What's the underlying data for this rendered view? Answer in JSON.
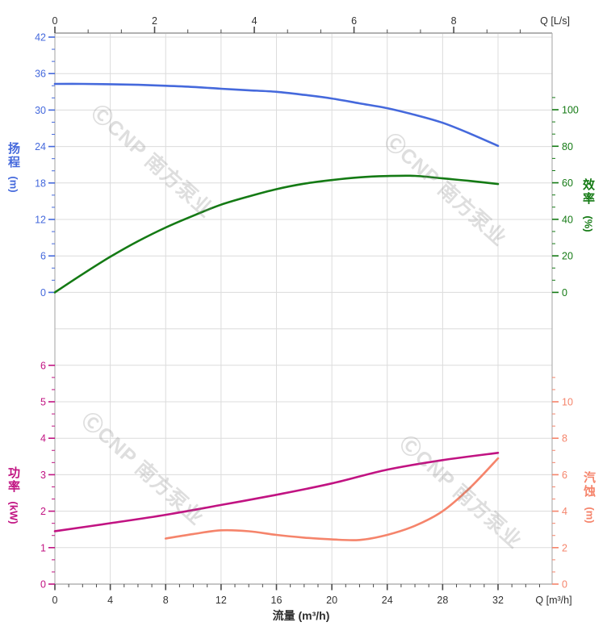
{
  "watermark": {
    "text": "ⒸCNP 南方泵业"
  },
  "colors": {
    "head": "#4569dc",
    "efficiency": "#147a14",
    "power": "#c11382",
    "npsh": "#f5846b",
    "grid": "#dcdcdc",
    "frame": "#b2b2b2",
    "dark": "#3d3d3d"
  },
  "chart_data": {
    "type": "line",
    "title": "",
    "x_axis_bottom": {
      "label": "流量 (m³/h)",
      "unit_label": "Q [m³/h]",
      "ticks": [
        "0",
        "4",
        "8",
        "12",
        "16",
        "20",
        "24",
        "28",
        "32"
      ],
      "tick_values": [
        0,
        4,
        8,
        12,
        16,
        20,
        24,
        28,
        32
      ],
      "range": [
        0,
        35.9
      ],
      "minor_step": 1,
      "grid": true
    },
    "x_axis_top": {
      "unit_label": "Q [L/s]",
      "ticks": [
        "0",
        "2",
        "4",
        "6",
        "8"
      ],
      "tick_values": [
        0,
        2,
        4,
        6,
        8
      ],
      "range": [
        0,
        9.97
      ]
    },
    "panels": [
      {
        "name": "head-efficiency",
        "left_axis": {
          "title": "扬程",
          "unit": "(m)",
          "ticks": [
            "42",
            "36",
            "30",
            "24",
            "18",
            "12",
            "6",
            "0"
          ],
          "tick_values": [
            42,
            36,
            30,
            24,
            18,
            12,
            6,
            0
          ],
          "range": [
            0,
            42
          ],
          "color_key": "head"
        },
        "right_axis": {
          "title": "效率",
          "unit": "(%)",
          "ticks": [
            "100",
            "80",
            "60",
            "40",
            "20",
            "0"
          ],
          "tick_values": [
            100,
            80,
            60,
            40,
            20,
            0
          ],
          "range": [
            0,
            100
          ],
          "color_key": "efficiency"
        },
        "series": [
          {
            "name": "扬程 (head)",
            "axis": "head",
            "color_key": "head",
            "points": [
              [
                0,
                34.3
              ],
              [
                2,
                34.3
              ],
              [
                4,
                34.25
              ],
              [
                6,
                34.15
              ],
              [
                8,
                34.0
              ],
              [
                10,
                33.8
              ],
              [
                12,
                33.5
              ],
              [
                14,
                33.25
              ],
              [
                16,
                33.0
              ],
              [
                18,
                32.5
              ],
              [
                20,
                31.9
              ],
              [
                22,
                31.1
              ],
              [
                24,
                30.3
              ],
              [
                26,
                29.2
              ],
              [
                28,
                27.9
              ],
              [
                30,
                26.1
              ],
              [
                32,
                24.1
              ]
            ]
          },
          {
            "name": "效率 (efficiency)",
            "axis": "efficiency",
            "color_key": "efficiency",
            "points": [
              [
                0,
                0
              ],
              [
                2,
                10
              ],
              [
                4,
                19.5
              ],
              [
                6,
                28
              ],
              [
                8,
                35.5
              ],
              [
                10,
                42
              ],
              [
                12,
                48
              ],
              [
                14,
                52.5
              ],
              [
                16,
                56.5
              ],
              [
                18,
                59.5
              ],
              [
                20,
                61.5
              ],
              [
                22,
                63
              ],
              [
                24,
                63.7
              ],
              [
                26,
                63.8
              ],
              [
                28,
                62.4
              ],
              [
                30,
                61
              ],
              [
                32,
                59.3
              ]
            ]
          }
        ]
      },
      {
        "name": "power-npsh",
        "left_axis": {
          "title": "功率",
          "unit": "(kW)",
          "ticks": [
            "6",
            "5",
            "4",
            "3",
            "2",
            "1",
            "0"
          ],
          "tick_values": [
            6,
            5,
            4,
            3,
            2,
            1,
            0
          ],
          "range": [
            0,
            6
          ],
          "color_key": "power"
        },
        "right_axis": {
          "title": "汽蚀",
          "unit": "(m)",
          "ticks": [
            "10",
            "8",
            "6",
            "4",
            "2",
            "0"
          ],
          "tick_values": [
            10,
            8,
            6,
            4,
            2,
            0
          ],
          "range": [
            0,
            12
          ],
          "color_key": "npsh"
        },
        "series": [
          {
            "name": "功率 (power)",
            "axis": "power",
            "color_key": "power",
            "points": [
              [
                0,
                1.45
              ],
              [
                4,
                1.67
              ],
              [
                8,
                1.9
              ],
              [
                12,
                2.17
              ],
              [
                16,
                2.45
              ],
              [
                20,
                2.76
              ],
              [
                24,
                3.14
              ],
              [
                28,
                3.4
              ],
              [
                32,
                3.6
              ]
            ]
          },
          {
            "name": "汽蚀 (NPSH)",
            "axis": "npsh",
            "color_key": "npsh",
            "points": [
              [
                8,
                2.5
              ],
              [
                10,
                2.75
              ],
              [
                12,
                2.95
              ],
              [
                14,
                2.9
              ],
              [
                16,
                2.7
              ],
              [
                18,
                2.55
              ],
              [
                20,
                2.45
              ],
              [
                22,
                2.42
              ],
              [
                24,
                2.7
              ],
              [
                26,
                3.2
              ],
              [
                28,
                4.0
              ],
              [
                30,
                5.3
              ],
              [
                32,
                6.9
              ]
            ]
          }
        ]
      }
    ]
  }
}
